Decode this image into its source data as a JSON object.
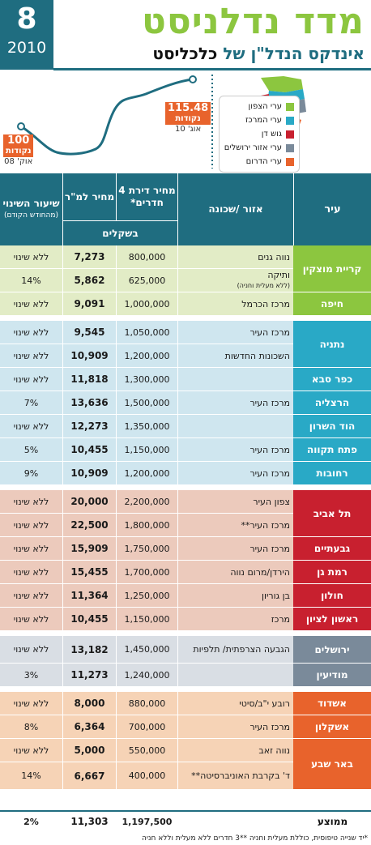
{
  "header": {
    "issue_number": "8",
    "issue_year": "2010",
    "title": "מדד נדלניסט",
    "subtitle_pre": "אינדקס הנדל\"ן של",
    "subtitle_brand": "כלכליסט"
  },
  "graph": {
    "start_value": "100",
    "start_unit": "נקודות",
    "start_date": "אוק' 08",
    "end_value": "115.48",
    "end_unit": "נקודות",
    "end_date": "אוג' 10"
  },
  "legend": [
    {
      "label": "ערי הצפון",
      "color": "#8cc63f"
    },
    {
      "label": "ערי המרכז",
      "color": "#29a9c6"
    },
    {
      "label": "גוש דן",
      "color": "#c8202f"
    },
    {
      "label": "ערי אזור ירושלים",
      "color": "#7a8a9a"
    },
    {
      "label": "ערי הדרום",
      "color": "#e8632c"
    }
  ],
  "table": {
    "headers": {
      "city": "עיר",
      "area": "אזור /שכונה",
      "price": "מחיר דירת 4 חדרים*",
      "sqm": "מחיר למ\"ר",
      "shekels": "בשקלים",
      "change": "שיעור השינוי",
      "change_note": "(מהחודש הקודם)"
    },
    "groups": [
      {
        "color": "#8cc63f",
        "bg": "#e2ecc6",
        "cities": [
          {
            "name": "קריית מוצקין",
            "rows": [
              {
                "area": "נווה גנים",
                "note": "",
                "price": "800,000",
                "sqm": "7,273",
                "change": "ללא שינוי"
              },
              {
                "area": "ותיקה",
                "note": "(ללא מעלית וחניה)",
                "price": "625,000",
                "sqm": "5,862",
                "change": "14%"
              }
            ]
          },
          {
            "name": "חיפה",
            "rows": [
              {
                "area": "מרכז הכרמל",
                "note": "",
                "price": "1,000,000",
                "sqm": "9,091",
                "change": "ללא שינוי"
              }
            ]
          }
        ]
      },
      {
        "color": "#29a9c6",
        "bg": "#cfe6ef",
        "cities": [
          {
            "name": "נתניה",
            "rows": [
              {
                "area": "מרכז העיר",
                "note": "",
                "price": "1,050,000",
                "sqm": "9,545",
                "change": "ללא שינוי"
              },
              {
                "area": "השכונות החדשות",
                "note": "",
                "price": "1,200,000",
                "sqm": "10,909",
                "change": "ללא שינוי"
              }
            ]
          },
          {
            "name": "כפר סבא",
            "rows": [
              {
                "area": "",
                "note": "",
                "price": "1,300,000",
                "sqm": "11,818",
                "change": "ללא שינוי"
              }
            ]
          },
          {
            "name": "הרצליה",
            "rows": [
              {
                "area": "מרכז העיר",
                "note": "",
                "price": "1,500,000",
                "sqm": "13,636",
                "change": "7%"
              }
            ]
          },
          {
            "name": "הוד השרון",
            "rows": [
              {
                "area": "",
                "note": "",
                "price": "1,350,000",
                "sqm": "12,273",
                "change": "ללא שינוי"
              }
            ]
          },
          {
            "name": "פתח תקווה",
            "rows": [
              {
                "area": "מרכז העיר",
                "note": "",
                "price": "1,150,000",
                "sqm": "10,455",
                "change": "5%"
              }
            ]
          },
          {
            "name": "רחובות",
            "rows": [
              {
                "area": "מרכז העיר",
                "note": "",
                "price": "1,200,000",
                "sqm": "10,909",
                "change": "9%"
              }
            ]
          }
        ]
      },
      {
        "color": "#c8202f",
        "bg": "#eccabc",
        "cities": [
          {
            "name": "תל אביב",
            "rows": [
              {
                "area": "צפון העיר",
                "note": "",
                "price": "2,200,000",
                "sqm": "20,000",
                "change": "ללא שינוי"
              },
              {
                "area": "מרכז העיר**",
                "note": "",
                "price": "1,800,000",
                "sqm": "22,500",
                "change": "ללא שינוי"
              }
            ]
          },
          {
            "name": "גבעתיים",
            "rows": [
              {
                "area": "מרכז העיר",
                "note": "",
                "price": "1,750,000",
                "sqm": "15,909",
                "change": "ללא שינוי"
              }
            ]
          },
          {
            "name": "רמת גן",
            "rows": [
              {
                "area": "הירדן/מרום נווה",
                "note": "",
                "price": "1,700,000",
                "sqm": "15,455",
                "change": "ללא שינוי"
              }
            ]
          },
          {
            "name": "חולון",
            "rows": [
              {
                "area": "בן גוריון",
                "note": "",
                "price": "1,250,000",
                "sqm": "11,364",
                "change": "ללא שינוי"
              }
            ]
          },
          {
            "name": "ראשון לציון",
            "rows": [
              {
                "area": "מרכז",
                "note": "",
                "price": "1,150,000",
                "sqm": "10,455",
                "change": "ללא שינוי"
              }
            ]
          }
        ]
      },
      {
        "color": "#7a8a9a",
        "bg": "#d9dee4",
        "cities": [
          {
            "name": "ירושלים",
            "tall": true,
            "rows": [
              {
                "area": "הגבעה הצרפתית/ תלפיות",
                "note": "",
                "price": "1,450,000",
                "sqm": "13,182",
                "change": "ללא שינוי"
              }
            ]
          },
          {
            "name": "מודיעין",
            "rows": [
              {
                "area": "",
                "note": "",
                "price": "1,240,000",
                "sqm": "11,273",
                "change": "3%"
              }
            ]
          }
        ]
      },
      {
        "color": "#e8632c",
        "bg": "#f6d3b6",
        "cities": [
          {
            "name": "אשדוד",
            "rows": [
              {
                "area": "רובע י\"ב/סיטי",
                "note": "",
                "price": "880,000",
                "sqm": "8,000",
                "change": "ללא שינוי"
              }
            ]
          },
          {
            "name": "אשקלון",
            "rows": [
              {
                "area": "מרכז העיר",
                "note": "",
                "price": "700,000",
                "sqm": "6,364",
                "change": "8%"
              }
            ]
          },
          {
            "name": "באר שבע",
            "rows": [
              {
                "area": "נווה זאב",
                "note": "",
                "price": "550,000",
                "sqm": "5,000",
                "change": "ללא שינוי"
              },
              {
                "area": "ד' בקרבת האוניברסיטה**",
                "note": "",
                "price": "400,000",
                "sqm": "6,667",
                "change": "14%",
                "tall": true
              }
            ]
          }
        ]
      }
    ],
    "average": {
      "label": "ממוצע",
      "price": "1,197,500",
      "sqm": "11,303",
      "change": "2%"
    }
  },
  "footnote": "*יד שנייה טיפוסית, כוללת מעלית וחניה  **3 חדרים ללא מעלית וללא חניה"
}
